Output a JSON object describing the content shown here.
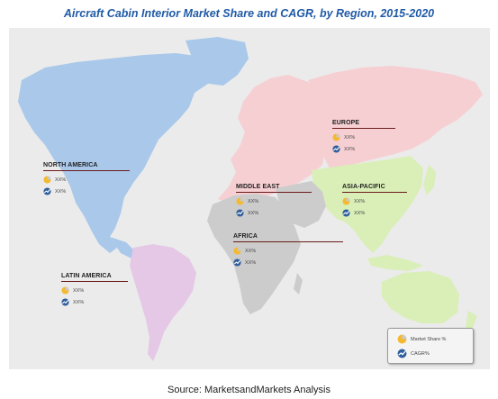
{
  "title": "Aircraft Cabin Interior Market Share and CAGR, by Region, 2015-2020",
  "source": "Source: MarketsandMarkets Analysis",
  "colors": {
    "north_america": "#a9c8ea",
    "latin_america": "#e5c8e6",
    "europe": "#f6cfd3",
    "asia_pacific": "#d9efb7",
    "middle_east_africa": "#cccccc",
    "region_line": "#6b1b1b",
    "title": "#1f5aa6"
  },
  "regions": [
    {
      "name": "NORTH AMERICA",
      "market_share": "XX%",
      "cagr": "XX%",
      "share_icon": "pie-icon",
      "cagr_icon": "growth-globe-icon"
    },
    {
      "name": "EUROPE",
      "market_share": "XX%",
      "cagr": "XX%",
      "share_icon": "pie-icon",
      "cagr_icon": "growth-globe-icon"
    },
    {
      "name": "MIDDLE EAST",
      "market_share": "XX%",
      "cagr": "XX%",
      "share_icon": "pie-icon",
      "cagr_icon": "growth-globe-icon"
    },
    {
      "name": "ASIA-PACIFIC",
      "market_share": "XX%",
      "cagr": "XX%",
      "share_icon": "pie-icon",
      "cagr_icon": "growth-globe-icon"
    },
    {
      "name": "AFRICA",
      "market_share": "XX%",
      "cagr": "XX%",
      "share_icon": "pie-icon",
      "cagr_icon": "growth-globe-icon"
    },
    {
      "name": "LATIN AMERICA",
      "market_share": "XX%",
      "cagr": "XX%",
      "share_icon": "pie-icon",
      "cagr_icon": "growth-globe-icon"
    }
  ],
  "legend": {
    "market_share_label": "Market Share %",
    "cagr_label": "CAGR%"
  }
}
